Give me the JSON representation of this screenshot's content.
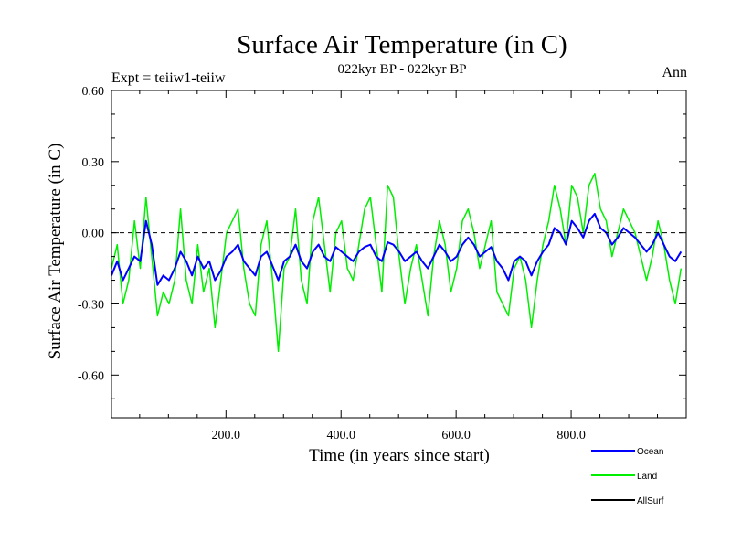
{
  "header": {
    "title": "Surface Air Temperature (in C)",
    "subtitle": "022kyr BP - 022kyr BP",
    "left_label": "Expt = teiiw1-teiiw",
    "right_label": "Ann"
  },
  "chart_data": {
    "type": "line",
    "title": "Surface Air Temperature (in C)",
    "subtitle": "022kyr BP - 022kyr BP",
    "xlabel": "Time (in years since start)",
    "ylabel": "Surface Air Temperature (in C)",
    "xlim": [
      1,
      1000
    ],
    "ylim": [
      -0.78,
      0.6
    ],
    "x_ticks": [
      200,
      400,
      600,
      800
    ],
    "x_tick_labels": [
      "200.0",
      "400.0",
      "600.0",
      "800.0"
    ],
    "y_ticks": [
      0.6,
      0.3,
      0.0,
      -0.3,
      -0.6
    ],
    "y_tick_labels": [
      "0.60",
      "0.30",
      "0.00",
      "-0.30",
      "-0.60"
    ],
    "zero_line": true,
    "grid": false,
    "legend_position": "bottom-right",
    "x": {
      "start": 1,
      "step": 10
    },
    "series": [
      {
        "name": "Ocean",
        "color": "#0000ff",
        "values": [
          -0.18,
          -0.12,
          -0.2,
          -0.15,
          -0.1,
          -0.12,
          0.05,
          -0.05,
          -0.22,
          -0.18,
          -0.2,
          -0.15,
          -0.08,
          -0.12,
          -0.18,
          -0.1,
          -0.15,
          -0.12,
          -0.2,
          -0.16,
          -0.1,
          -0.08,
          -0.05,
          -0.12,
          -0.15,
          -0.18,
          -0.1,
          -0.08,
          -0.14,
          -0.2,
          -0.12,
          -0.1,
          -0.05,
          -0.12,
          -0.15,
          -0.08,
          -0.05,
          -0.1,
          -0.12,
          -0.06,
          -0.08,
          -0.1,
          -0.12,
          -0.08,
          -0.06,
          -0.05,
          -0.1,
          -0.12,
          -0.04,
          -0.05,
          -0.08,
          -0.12,
          -0.1,
          -0.08,
          -0.12,
          -0.15,
          -0.1,
          -0.05,
          -0.08,
          -0.12,
          -0.1,
          -0.05,
          -0.02,
          -0.05,
          -0.1,
          -0.08,
          -0.06,
          -0.12,
          -0.15,
          -0.2,
          -0.12,
          -0.1,
          -0.12,
          -0.18,
          -0.12,
          -0.08,
          -0.05,
          0.02,
          0.0,
          -0.05,
          0.05,
          0.02,
          -0.02,
          0.05,
          0.08,
          0.02,
          0.0,
          -0.05,
          -0.02,
          0.02,
          0.0,
          -0.02,
          -0.05,
          -0.08,
          -0.05,
          0.0,
          -0.05,
          -0.1,
          -0.12,
          -0.08
        ]
      },
      {
        "name": "Land",
        "color": "#00ee00",
        "values": [
          -0.15,
          -0.05,
          -0.3,
          -0.2,
          0.05,
          -0.15,
          0.15,
          -0.1,
          -0.35,
          -0.25,
          -0.3,
          -0.2,
          0.1,
          -0.2,
          -0.3,
          -0.05,
          -0.25,
          -0.15,
          -0.4,
          -0.2,
          0.0,
          0.05,
          0.1,
          -0.15,
          -0.3,
          -0.35,
          -0.05,
          0.05,
          -0.2,
          -0.5,
          -0.15,
          -0.1,
          0.1,
          -0.2,
          -0.3,
          0.05,
          0.15,
          -0.05,
          -0.25,
          0.0,
          0.05,
          -0.15,
          -0.2,
          -0.05,
          0.1,
          0.15,
          -0.05,
          -0.25,
          0.2,
          0.15,
          -0.1,
          -0.3,
          -0.15,
          -0.05,
          -0.2,
          -0.35,
          -0.1,
          0.05,
          -0.05,
          -0.25,
          -0.15,
          0.05,
          0.1,
          0.0,
          -0.15,
          -0.05,
          0.05,
          -0.25,
          -0.3,
          -0.35,
          -0.15,
          -0.1,
          -0.2,
          -0.4,
          -0.2,
          -0.05,
          0.05,
          0.2,
          0.1,
          -0.05,
          0.2,
          0.15,
          0.0,
          0.2,
          0.25,
          0.1,
          0.05,
          -0.1,
          0.0,
          0.1,
          0.05,
          0.0,
          -0.1,
          -0.2,
          -0.1,
          0.05,
          -0.05,
          -0.2,
          -0.3,
          -0.15
        ]
      },
      {
        "name": "AllSurf",
        "color": "#000000",
        "values": []
      }
    ]
  }
}
